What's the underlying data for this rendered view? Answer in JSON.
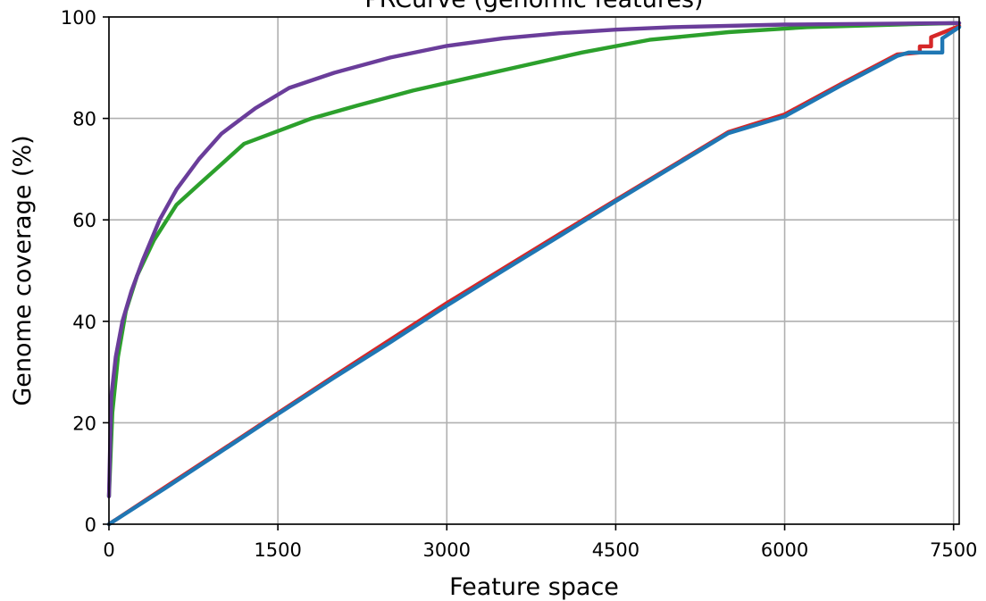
{
  "chart_data": {
    "type": "line",
    "title": "PRCurve (genomic features)",
    "xlabel": "Feature space",
    "ylabel": "Genome coverage (%)",
    "xlim": [
      0,
      7550
    ],
    "ylim": [
      0,
      100
    ],
    "xticks": [
      0,
      1500,
      3000,
      4500,
      6000,
      7500
    ],
    "yticks": [
      0,
      20,
      40,
      60,
      80,
      100
    ],
    "grid": true,
    "series": [
      {
        "color": "#d62728",
        "points": [
          [
            0,
            0
          ],
          [
            500,
            7.3
          ],
          [
            1000,
            14.6
          ],
          [
            1500,
            21.9
          ],
          [
            2000,
            29.2
          ],
          [
            2500,
            36.4
          ],
          [
            3000,
            43.6
          ],
          [
            3500,
            50.4
          ],
          [
            4000,
            57.2
          ],
          [
            4500,
            63.9
          ],
          [
            5000,
            70.6
          ],
          [
            5500,
            77.3
          ],
          [
            6000,
            80.8
          ],
          [
            6500,
            86.8
          ],
          [
            7000,
            92.6
          ],
          [
            7200,
            93.0
          ],
          [
            7200,
            94.2
          ],
          [
            7300,
            94.2
          ],
          [
            7300,
            96.0
          ],
          [
            7550,
            98.2
          ]
        ]
      },
      {
        "color": "#1f77b4",
        "points": [
          [
            0,
            0
          ],
          [
            500,
            7.1
          ],
          [
            1000,
            14.4
          ],
          [
            1500,
            21.7
          ],
          [
            2000,
            28.9
          ],
          [
            2500,
            35.9
          ],
          [
            3000,
            43.1
          ],
          [
            3500,
            50.0
          ],
          [
            4000,
            56.8
          ],
          [
            4500,
            63.7
          ],
          [
            5000,
            70.4
          ],
          [
            5500,
            77.1
          ],
          [
            6000,
            80.4
          ],
          [
            6500,
            86.5
          ],
          [
            7000,
            92.3
          ],
          [
            7100,
            93.0
          ],
          [
            7400,
            93.0
          ],
          [
            7400,
            95.8
          ],
          [
            7550,
            98.0
          ]
        ]
      },
      {
        "color": "#2ca02c",
        "points": [
          [
            0,
            5.5
          ],
          [
            30,
            22
          ],
          [
            80,
            33
          ],
          [
            150,
            42
          ],
          [
            250,
            49
          ],
          [
            400,
            56
          ],
          [
            600,
            63
          ],
          [
            800,
            67
          ],
          [
            1000,
            71
          ],
          [
            1200,
            75
          ],
          [
            1500,
            77.5
          ],
          [
            1800,
            80
          ],
          [
            2200,
            82.5
          ],
          [
            2700,
            85.5
          ],
          [
            3200,
            88
          ],
          [
            3700,
            90.5
          ],
          [
            4200,
            93
          ],
          [
            4800,
            95.5
          ],
          [
            5500,
            97
          ],
          [
            6200,
            98
          ],
          [
            7000,
            98.5
          ],
          [
            7550,
            98.8
          ]
        ]
      },
      {
        "color": "#6a3d9a",
        "points": [
          [
            0,
            5.5
          ],
          [
            20,
            25
          ],
          [
            60,
            33
          ],
          [
            120,
            40
          ],
          [
            200,
            46
          ],
          [
            300,
            52
          ],
          [
            450,
            60
          ],
          [
            600,
            66
          ],
          [
            800,
            72
          ],
          [
            1000,
            77
          ],
          [
            1300,
            82
          ],
          [
            1600,
            86
          ],
          [
            2000,
            89
          ],
          [
            2500,
            92
          ],
          [
            3000,
            94.3
          ],
          [
            3500,
            95.8
          ],
          [
            4000,
            96.8
          ],
          [
            4500,
            97.5
          ],
          [
            5000,
            98
          ],
          [
            6000,
            98.5
          ],
          [
            7000,
            98.7
          ],
          [
            7550,
            98.8
          ]
        ]
      }
    ]
  }
}
